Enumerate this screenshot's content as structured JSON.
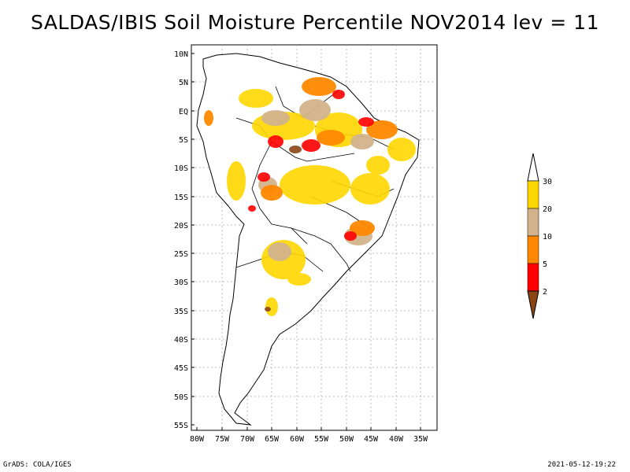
{
  "title": "SALDAS/IBIS Soil Moisture Percentile NOV2014 lev = 11",
  "map": {
    "region": "South America",
    "lat_labels": [
      "10N",
      "5N",
      "EQ",
      "5S",
      "10S",
      "15S",
      "20S",
      "25S",
      "30S",
      "35S",
      "40S",
      "45S",
      "50S",
      "55S"
    ],
    "lon_labels": [
      "80W",
      "75W",
      "70W",
      "65W",
      "60W",
      "55W",
      "50W",
      "45W",
      "40W",
      "35W"
    ],
    "lat_range": [
      -56,
      11
    ],
    "lon_range": [
      -81,
      -33
    ]
  },
  "legend": {
    "labels": [
      "2",
      "5",
      "10",
      "20",
      "30"
    ],
    "colors": [
      "#8B4513",
      "#ff0000",
      "#ff8800",
      "#d2b48c",
      "#ffd700",
      "#ffffff"
    ]
  },
  "footer": {
    "left": "GrADS: COLA/IGES",
    "right": "2021-05-12-19:22"
  }
}
